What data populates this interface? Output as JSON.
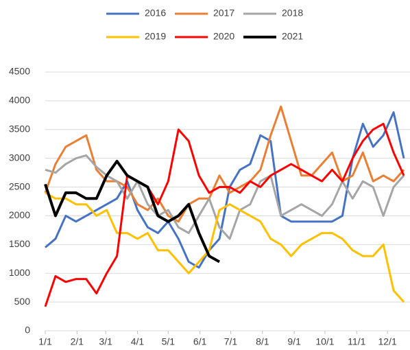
{
  "chart_data": {
    "type": "line",
    "x": [
      0,
      10,
      20,
      30,
      40,
      50,
      60,
      70,
      80,
      90,
      100,
      110,
      120,
      130,
      140,
      150,
      160,
      170,
      180,
      190,
      200,
      210,
      220,
      230,
      240,
      250,
      260,
      270,
      280,
      290,
      300,
      310,
      320,
      330,
      340,
      350
    ],
    "xlim": [
      0,
      356
    ],
    "xticks": [
      {
        "value": 0,
        "label": "1/1"
      },
      {
        "value": 31,
        "label": "2/1"
      },
      {
        "value": 59,
        "label": "3/1"
      },
      {
        "value": 90,
        "label": "4/1"
      },
      {
        "value": 120,
        "label": "5/1"
      },
      {
        "value": 151,
        "label": "6/1"
      },
      {
        "value": 181,
        "label": "7/1"
      },
      {
        "value": 212,
        "label": "8/1"
      },
      {
        "value": 243,
        "label": "9/1"
      },
      {
        "value": 273,
        "label": "10/1"
      },
      {
        "value": 304,
        "label": "11/1"
      },
      {
        "value": 334,
        "label": "12/1"
      }
    ],
    "ylim": [
      0,
      4500
    ],
    "yticks": [
      0,
      500,
      1000,
      1500,
      2000,
      2500,
      3000,
      3500,
      4000,
      4500
    ],
    "grid": true,
    "legend": "top",
    "series": [
      {
        "name": "2016",
        "color": "#4472c4",
        "values": [
          1450,
          1600,
          2000,
          1900,
          2000,
          2100,
          2200,
          2300,
          2600,
          2100,
          1800,
          1700,
          1900,
          1600,
          1200,
          1100,
          1400,
          1600,
          2500,
          2800,
          2900,
          3400,
          3300,
          2000,
          1900,
          1900,
          1900,
          1900,
          1900,
          2000,
          3000,
          3600,
          3200,
          3400,
          3800,
          3000
        ]
      },
      {
        "name": "2017",
        "color": "#ed7d31",
        "values": [
          2400,
          2900,
          3200,
          3300,
          3400,
          2800,
          2600,
          2600,
          2500,
          2200,
          2100,
          2300,
          2000,
          1900,
          2200,
          2300,
          2300,
          2700,
          2400,
          2500,
          2600,
          2800,
          3400,
          3900,
          3300,
          2700,
          2700,
          2900,
          3100,
          2600,
          2700,
          3100,
          2600,
          2700,
          2600,
          2800
        ]
      },
      {
        "name": "2018",
        "color": "#a5a5a5",
        "values": [
          2800,
          2750,
          2900,
          3000,
          3050,
          2850,
          2700,
          2600,
          2300,
          2600,
          2200,
          2000,
          2100,
          1800,
          1700,
          2000,
          2300,
          1800,
          1600,
          2100,
          2200,
          2600,
          2700,
          2000,
          2100,
          2200,
          2100,
          2000,
          2200,
          2600,
          2300,
          2600,
          2500,
          2000,
          2500,
          2700
        ]
      },
      {
        "name": "2019",
        "color": "#ffc000",
        "values": [
          2400,
          2300,
          2300,
          2200,
          2200,
          2000,
          2100,
          1700,
          1700,
          1600,
          1700,
          1400,
          1400,
          1200,
          1000,
          1200,
          1400,
          2100,
          2200,
          2100,
          2000,
          1900,
          1600,
          1500,
          1300,
          1500,
          1600,
          1700,
          1700,
          1600,
          1400,
          1300,
          1300,
          1500,
          700,
          500
        ]
      },
      {
        "name": "2020",
        "color": "#ff0000",
        "values": [
          420,
          950,
          850,
          900,
          900,
          650,
          1000,
          1300,
          2700,
          2600,
          2500,
          2200,
          2600,
          3500,
          3300,
          2700,
          2400,
          2500,
          2500,
          2400,
          2600,
          2500,
          2700,
          2800,
          2900,
          2800,
          2700,
          2600,
          2800,
          2600,
          3000,
          3300,
          3500,
          3600,
          3100,
          2700
        ]
      },
      {
        "name": "2021",
        "color": "#000000",
        "values": [
          2550,
          2000,
          2400,
          2400,
          2300,
          2300,
          2700,
          2950,
          2700,
          2600,
          2500,
          2000,
          1900,
          2000,
          2200,
          1700,
          1300,
          1200,
          null,
          null,
          null,
          null,
          null,
          null,
          null,
          null,
          null,
          null,
          null,
          null,
          null,
          null,
          null,
          null,
          null,
          null
        ]
      }
    ]
  }
}
